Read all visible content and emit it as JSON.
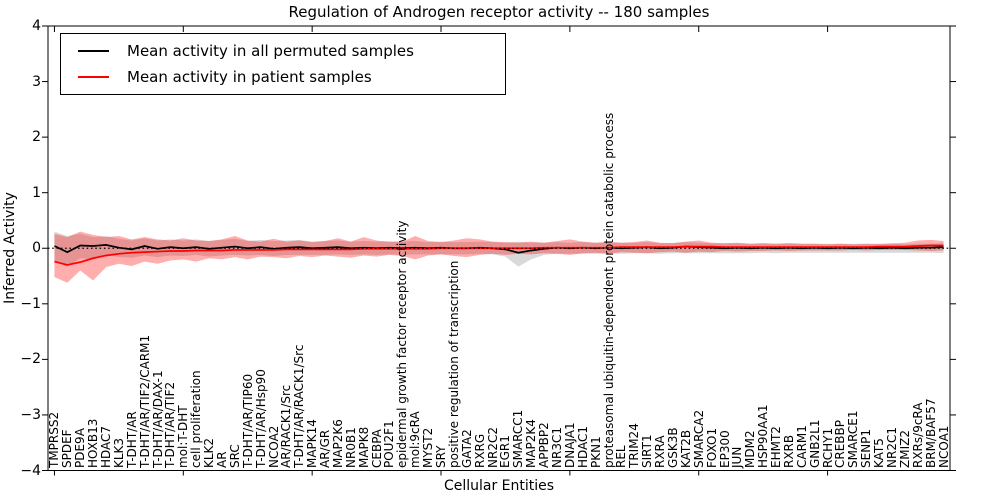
{
  "chart_data": {
    "type": "line",
    "title": "Regulation of Androgen receptor activity -- 180 samples",
    "xlabel": "Cellular Entities",
    "ylabel": "Inferred Activity",
    "ylim": [
      -4,
      4
    ],
    "ytick_values": [
      4,
      3,
      2,
      1,
      0,
      -1,
      -2,
      -3,
      -4
    ],
    "ytick_labels": [
      "4",
      "3",
      "2",
      "1",
      "0",
      "−1",
      "−2",
      "−3",
      "−4"
    ],
    "grid": false,
    "legend_position": "upper left",
    "zero_line": "dotted",
    "xtick_major_every": 10,
    "categories": [
      "TMPRSS2",
      "SPDEF",
      "PDE9A",
      "HOXB13",
      "HDAC7",
      "KLK3",
      "T-DHT/AR",
      "T-DHT/AR/TIF2/CARM1",
      "T-DHT/AR/DAX-1",
      "T-DHT/AR/TIF2",
      "mol:T-DHT",
      "cell proliferation",
      "KLK2",
      "AR",
      "SRC",
      "T-DHT/AR/TIP60",
      "T-DHT/AR/Hsp90",
      "NCOA2",
      "AR/RACK1/Src",
      "T-DHT/AR/RACK1/Src",
      "MAPK14",
      "AR/GR",
      "MAP2K6",
      "NR0B1",
      "MAPK8",
      "CEBPA",
      "POU2F1",
      "epidermal growth factor receptor activity",
      "mol:9cRA",
      "MYST2",
      "SRY",
      "positive regulation of transcription",
      "GATA2",
      "RXRG",
      "NR2C2",
      "EGR1",
      "SMARCC1",
      "MAP2K4",
      "APPBP2",
      "NR3C1",
      "DNAJA1",
      "HDAC1",
      "PKN1",
      "proteasomal ubiquitin-dependent protein catabolic process",
      "REL",
      "TRIM24",
      "SIRT1",
      "RXRA",
      "GSK3B",
      "KAT2B",
      "SMARCA2",
      "FOXO1",
      "EP300",
      "JUN",
      "MDM2",
      "HSP90AA1",
      "EHMT2",
      "RXRB",
      "CARM1",
      "GNB2L1",
      "RCHY1",
      "CREBBP",
      "SMARCE1",
      "SENP1",
      "KAT5",
      "NR2C1",
      "ZMIZ2",
      "RXRs/9cRA",
      "BRM/BAF57",
      "NCOA1"
    ],
    "series": [
      {
        "name": "Mean activity in all permuted samples",
        "color": "#000000",
        "band_color": "rgba(0,0,0,0.15)",
        "values": [
          0.04,
          -0.07,
          0.05,
          0.04,
          0.06,
          0.01,
          -0.02,
          0.04,
          -0.01,
          0.02,
          0.0,
          0.02,
          -0.01,
          0.01,
          0.03,
          0.0,
          0.02,
          -0.01,
          0.01,
          0.02,
          0.0,
          0.01,
          0.02,
          0.0,
          0.01,
          0.0,
          0.01,
          0.0,
          0.01,
          0.0,
          0.01,
          0.0,
          0.0,
          0.01,
          0.0,
          -0.02,
          -0.08,
          -0.04,
          -0.01,
          0.01,
          0.0,
          0.01,
          0.0,
          0.01,
          0.0,
          0.01,
          0.02,
          0.0,
          0.01,
          0.03,
          0.02,
          0.01,
          0.0,
          0.01,
          0.0,
          0.01,
          0.0,
          0.01,
          0.0,
          0.01,
          0.0,
          0.01,
          0.0,
          0.01,
          0.0,
          0.01,
          0.0,
          0.01,
          0.01,
          0.02
        ],
        "band_hi": [
          0.3,
          0.22,
          0.26,
          0.2,
          0.22,
          0.17,
          0.14,
          0.18,
          0.14,
          0.16,
          0.14,
          0.16,
          0.13,
          0.15,
          0.17,
          0.13,
          0.15,
          0.13,
          0.14,
          0.15,
          0.12,
          0.13,
          0.14,
          0.12,
          0.13,
          0.12,
          0.13,
          0.12,
          0.13,
          0.11,
          0.12,
          0.11,
          0.11,
          0.12,
          0.11,
          0.1,
          0.12,
          0.1,
          0.1,
          0.11,
          0.1,
          0.11,
          0.1,
          0.1,
          0.1,
          0.1,
          0.11,
          0.09,
          0.1,
          0.11,
          0.1,
          0.09,
          0.09,
          0.09,
          0.08,
          0.09,
          0.08,
          0.09,
          0.08,
          0.08,
          0.08,
          0.08,
          0.08,
          0.08,
          0.07,
          0.08,
          0.07,
          0.08,
          0.08,
          0.09
        ],
        "band_lo": [
          -0.24,
          -0.33,
          -0.18,
          -0.2,
          -0.12,
          -0.16,
          -0.17,
          -0.13,
          -0.16,
          -0.13,
          -0.14,
          -0.12,
          -0.15,
          -0.13,
          -0.12,
          -0.13,
          -0.12,
          -0.14,
          -0.12,
          -0.12,
          -0.12,
          -0.12,
          -0.11,
          -0.12,
          -0.11,
          -0.12,
          -0.11,
          -0.12,
          -0.11,
          -0.11,
          -0.11,
          -0.11,
          -0.11,
          -0.1,
          -0.11,
          -0.15,
          -0.33,
          -0.2,
          -0.12,
          -0.1,
          -0.1,
          -0.1,
          -0.1,
          -0.1,
          -0.1,
          -0.09,
          -0.09,
          -0.1,
          -0.09,
          -0.09,
          -0.09,
          -0.09,
          -0.09,
          -0.09,
          -0.09,
          -0.08,
          -0.09,
          -0.08,
          -0.08,
          -0.08,
          -0.08,
          -0.08,
          -0.08,
          -0.08,
          -0.08,
          -0.08,
          -0.08,
          -0.08,
          -0.08,
          -0.09
        ]
      },
      {
        "name": "Mean activity in patient samples",
        "color": "#ff0000",
        "band_color": "rgba(255,0,0,0.32)",
        "values": [
          -0.24,
          -0.3,
          -0.25,
          -0.18,
          -0.13,
          -0.1,
          -0.08,
          -0.07,
          -0.06,
          -0.05,
          -0.05,
          -0.04,
          -0.04,
          -0.04,
          -0.03,
          -0.03,
          -0.03,
          -0.03,
          -0.02,
          -0.02,
          -0.02,
          -0.02,
          -0.02,
          -0.02,
          -0.01,
          -0.01,
          -0.01,
          -0.01,
          -0.01,
          -0.01,
          0.0,
          0.0,
          0.0,
          0.0,
          0.0,
          0.0,
          0.0,
          0.0,
          0.01,
          0.01,
          0.01,
          0.01,
          0.01,
          0.01,
          0.02,
          0.02,
          0.02,
          0.02,
          0.02,
          0.03,
          0.03,
          0.03,
          0.02,
          0.02,
          0.02,
          0.02,
          0.02,
          0.02,
          0.02,
          0.02,
          0.02,
          0.02,
          0.02,
          0.02,
          0.03,
          0.03,
          0.03,
          0.04,
          0.05,
          0.05
        ],
        "band_hi": [
          0.26,
          0.2,
          0.3,
          0.24,
          0.2,
          0.22,
          0.16,
          0.2,
          0.16,
          0.14,
          0.18,
          0.14,
          0.13,
          0.16,
          0.22,
          0.14,
          0.12,
          0.17,
          0.12,
          0.14,
          0.11,
          0.13,
          0.18,
          0.12,
          0.2,
          0.14,
          0.11,
          0.12,
          0.22,
          0.13,
          0.11,
          0.14,
          0.18,
          0.16,
          0.12,
          0.11,
          0.1,
          0.12,
          0.1,
          0.13,
          0.16,
          0.12,
          0.1,
          0.12,
          0.1,
          0.11,
          0.14,
          0.1,
          0.09,
          0.12,
          0.14,
          0.1,
          0.09,
          0.1,
          0.08,
          0.09,
          0.08,
          0.09,
          0.08,
          0.08,
          0.07,
          0.08,
          0.07,
          0.08,
          0.08,
          0.09,
          0.1,
          0.14,
          0.15,
          0.13
        ],
        "band_lo": [
          -0.52,
          -0.62,
          -0.4,
          -0.58,
          -0.34,
          -0.28,
          -0.32,
          -0.24,
          -0.28,
          -0.22,
          -0.2,
          -0.24,
          -0.18,
          -0.2,
          -0.16,
          -0.2,
          -0.15,
          -0.16,
          -0.18,
          -0.14,
          -0.16,
          -0.13,
          -0.15,
          -0.17,
          -0.13,
          -0.15,
          -0.12,
          -0.14,
          -0.2,
          -0.13,
          -0.11,
          -0.14,
          -0.16,
          -0.12,
          -0.1,
          -0.12,
          -0.1,
          -0.11,
          -0.09,
          -0.1,
          -0.12,
          -0.09,
          -0.08,
          -0.1,
          -0.07,
          -0.08,
          -0.09,
          -0.07,
          -0.06,
          -0.08,
          -0.06,
          -0.07,
          -0.05,
          -0.06,
          -0.05,
          -0.05,
          -0.04,
          -0.05,
          -0.04,
          -0.04,
          -0.04,
          -0.04,
          -0.03,
          -0.04,
          -0.03,
          -0.03,
          -0.03,
          -0.04,
          -0.05,
          -0.04
        ]
      }
    ]
  }
}
